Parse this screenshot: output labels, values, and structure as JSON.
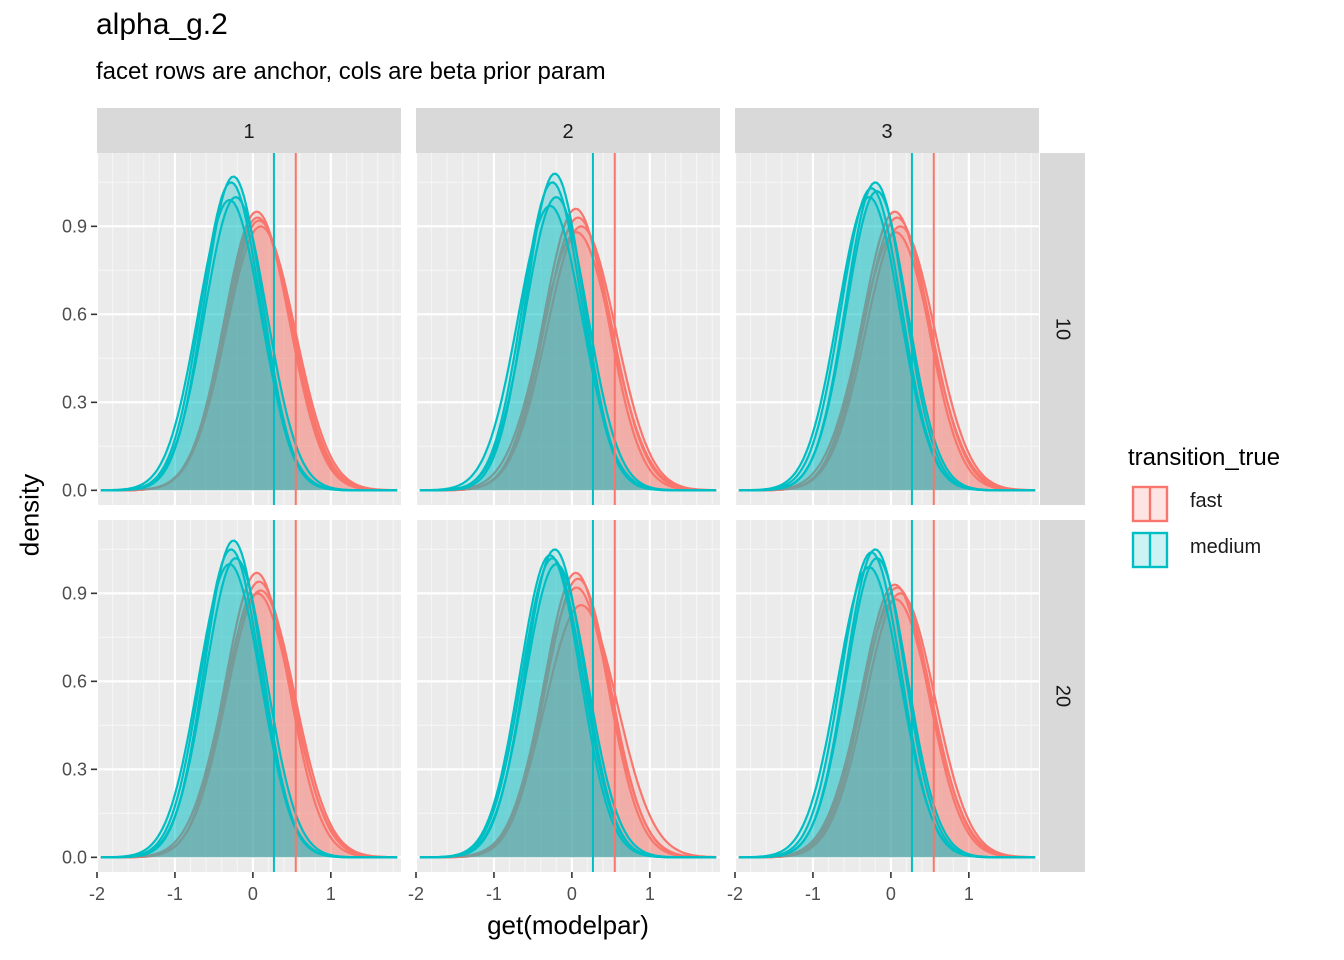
{
  "chart_data": {
    "type": "area",
    "title": "alpha_g.2",
    "subtitle": "facet rows are anchor, cols are beta prior param",
    "xlabel": "get(modelpar)",
    "ylabel": "density",
    "xlim": [
      -2,
      1.9
    ],
    "ylim": [
      -0.05,
      1.15
    ],
    "x_ticks": [
      -2,
      -1,
      0,
      1
    ],
    "x_tick_labels": [
      "-2",
      "-1",
      "0",
      "1"
    ],
    "y_ticks": [
      0.0,
      0.3,
      0.6,
      0.9
    ],
    "y_tick_labels": [
      "0.0",
      "0.3",
      "0.6",
      "0.9"
    ],
    "grid": true,
    "facet_cols": [
      "1",
      "2",
      "3"
    ],
    "facet_rows": [
      "10",
      "20"
    ],
    "legend": {
      "title": "transition_true",
      "position": "right",
      "entries": [
        {
          "label": "fast",
          "color": "#F8766D"
        },
        {
          "label": "medium",
          "color": "#00BFC4"
        }
      ]
    },
    "series_colors": {
      "fast": "#F8766D",
      "medium": "#00BFC4"
    },
    "vlines": [
      {
        "series": "fast",
        "x": 0.55
      },
      {
        "series": "medium",
        "x": 0.27
      }
    ],
    "x_grid": [
      -1.8,
      -1.6,
      -1.4,
      -1.2,
      -1.0,
      -0.8,
      -0.6,
      -0.4,
      -0.2,
      0.0,
      0.2,
      0.4,
      0.6,
      0.8,
      1.0,
      1.2,
      1.4,
      1.6,
      1.8
    ],
    "series": [
      {
        "name": "fast",
        "panels": [
          {
            "row": "10",
            "col": "1",
            "curves": [
              {
                "mean": 0.05,
                "peak": 0.95
              },
              {
                "mean": 0.08,
                "peak": 0.92
              },
              {
                "mean": 0.1,
                "peak": 0.9
              },
              {
                "mean": 0.06,
                "peak": 0.93
              }
            ]
          },
          {
            "row": "20",
            "col": "1",
            "curves": [
              {
                "mean": 0.05,
                "peak": 0.97
              },
              {
                "mean": 0.08,
                "peak": 0.94
              },
              {
                "mean": 0.1,
                "peak": 0.91
              },
              {
                "mean": 0.06,
                "peak": 0.9
              }
            ]
          },
          {
            "row": "10",
            "col": "2",
            "curves": [
              {
                "mean": 0.05,
                "peak": 0.96
              },
              {
                "mean": 0.08,
                "peak": 0.93
              },
              {
                "mean": 0.12,
                "peak": 0.9
              },
              {
                "mean": 0.06,
                "peak": 0.88
              }
            ]
          },
          {
            "row": "20",
            "col": "2",
            "curves": [
              {
                "mean": 0.05,
                "peak": 0.97
              },
              {
                "mean": 0.08,
                "peak": 0.95
              },
              {
                "mean": 0.12,
                "peak": 0.86
              },
              {
                "mean": 0.06,
                "peak": 0.92
              }
            ]
          },
          {
            "row": "10",
            "col": "3",
            "curves": [
              {
                "mean": 0.05,
                "peak": 0.95
              },
              {
                "mean": 0.08,
                "peak": 0.93
              },
              {
                "mean": 0.12,
                "peak": 0.9
              },
              {
                "mean": 0.06,
                "peak": 0.88
              }
            ]
          },
          {
            "row": "20",
            "col": "3",
            "curves": [
              {
                "mean": 0.05,
                "peak": 0.93
              },
              {
                "mean": 0.08,
                "peak": 0.92
              },
              {
                "mean": 0.12,
                "peak": 0.9
              },
              {
                "mean": 0.06,
                "peak": 0.88
              }
            ]
          }
        ]
      },
      {
        "name": "medium",
        "panels": [
          {
            "row": "10",
            "col": "1",
            "curves": [
              {
                "mean": -0.25,
                "peak": 1.07
              },
              {
                "mean": -0.28,
                "peak": 1.05
              },
              {
                "mean": -0.22,
                "peak": 1.0
              },
              {
                "mean": -0.3,
                "peak": 0.99
              }
            ]
          },
          {
            "row": "20",
            "col": "1",
            "curves": [
              {
                "mean": -0.25,
                "peak": 1.08
              },
              {
                "mean": -0.28,
                "peak": 1.05
              },
              {
                "mean": -0.22,
                "peak": 1.02
              },
              {
                "mean": -0.3,
                "peak": 1.0
              }
            ]
          },
          {
            "row": "10",
            "col": "2",
            "curves": [
              {
                "mean": -0.22,
                "peak": 1.08
              },
              {
                "mean": -0.25,
                "peak": 1.05
              },
              {
                "mean": -0.2,
                "peak": 1.0
              },
              {
                "mean": -0.28,
                "peak": 0.97
              }
            ]
          },
          {
            "row": "20",
            "col": "2",
            "curves": [
              {
                "mean": -0.22,
                "peak": 1.05
              },
              {
                "mean": -0.25,
                "peak": 1.02
              },
              {
                "mean": -0.2,
                "peak": 1.0
              },
              {
                "mean": -0.28,
                "peak": 1.03
              }
            ]
          },
          {
            "row": "10",
            "col": "3",
            "curves": [
              {
                "mean": -0.2,
                "peak": 1.05
              },
              {
                "mean": -0.25,
                "peak": 1.03
              },
              {
                "mean": -0.18,
                "peak": 1.02
              },
              {
                "mean": -0.28,
                "peak": 1.0
              }
            ]
          },
          {
            "row": "20",
            "col": "3",
            "curves": [
              {
                "mean": -0.2,
                "peak": 1.05
              },
              {
                "mean": -0.25,
                "peak": 1.04
              },
              {
                "mean": -0.18,
                "peak": 1.02
              },
              {
                "mean": -0.28,
                "peak": 0.99
              }
            ]
          }
        ]
      }
    ]
  }
}
